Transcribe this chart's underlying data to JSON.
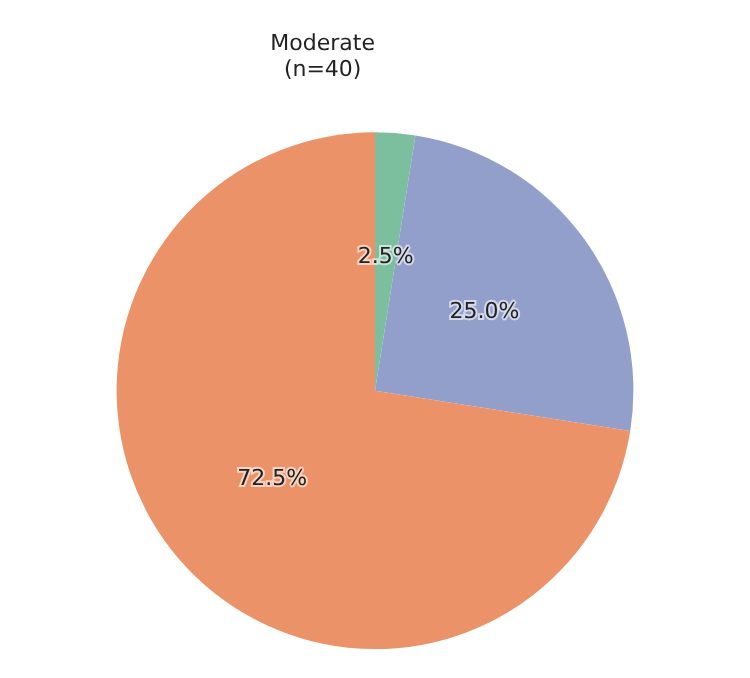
{
  "chart_data": {
    "type": "pie",
    "title": "Moderate\n(n=40)",
    "categories": [
      null,
      null,
      null
    ],
    "values": [
      2.5,
      25.0,
      72.5
    ],
    "value_labels": [
      "2.5%",
      "25.0%",
      "72.5%"
    ],
    "colors": [
      "#7cbf9e",
      "#929fca",
      "#ec9268"
    ]
  }
}
